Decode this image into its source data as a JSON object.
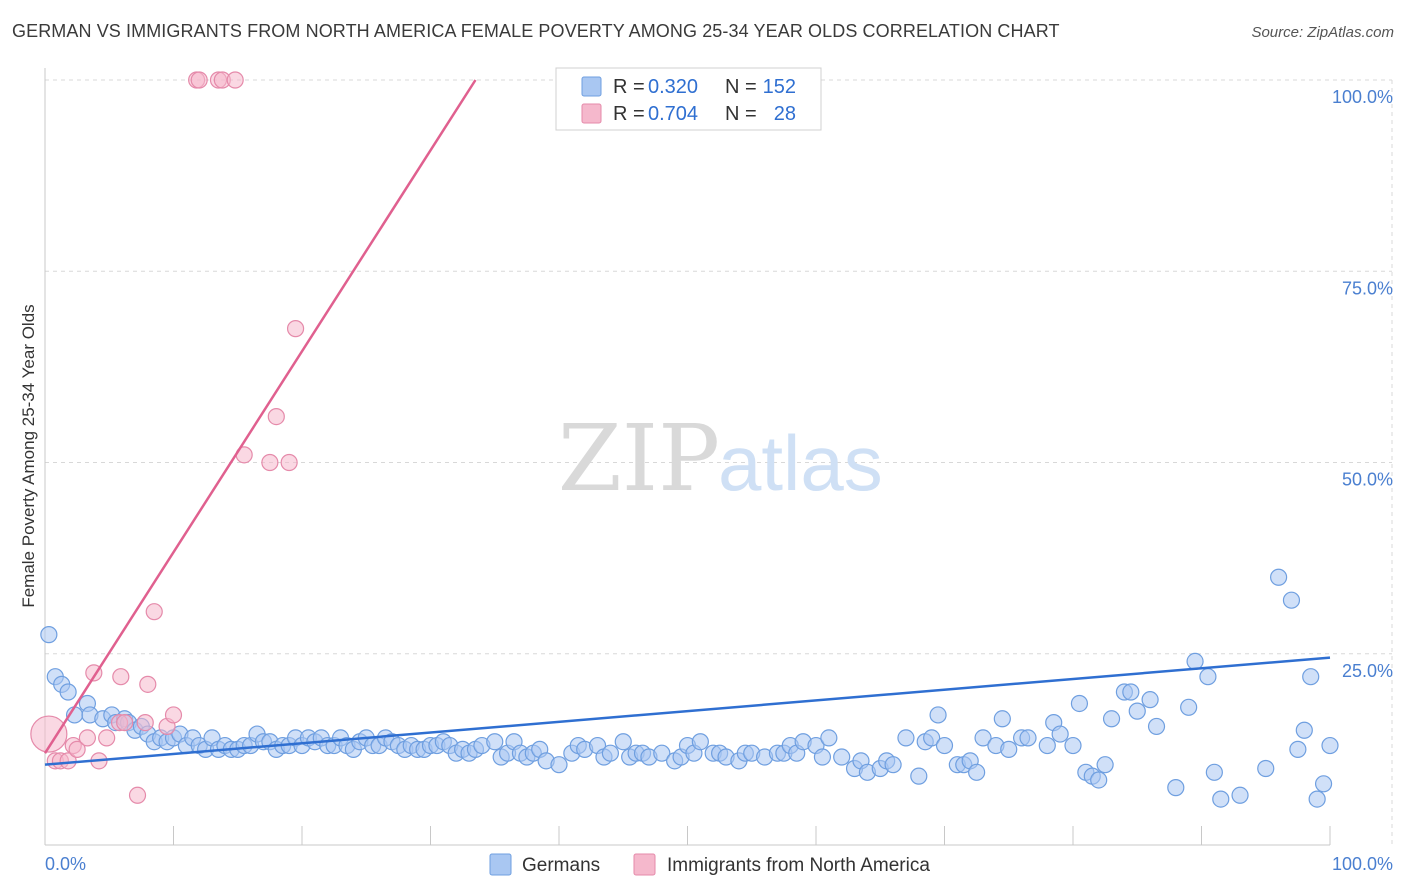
{
  "title": "GERMAN VS IMMIGRANTS FROM NORTH AMERICA FEMALE POVERTY AMONG 25-34 YEAR OLDS CORRELATION CHART",
  "source": "Source: ZipAtlas.com",
  "watermark": {
    "zip": "ZIP",
    "atlas": "atlas"
  },
  "colors": {
    "blue": "#4a86e8",
    "blue_fill": "#a9c7f2",
    "pink": "#e0608f",
    "pink_fill": "#f5b8cc",
    "grid": "#d8d8d8",
    "tick_text": "#4a7fd0"
  },
  "legend": {
    "items": [
      {
        "r_label": "R =",
        "r_value": "0.320",
        "n_label": "N =",
        "n_value": "152"
      },
      {
        "r_label": "R =",
        "r_value": "0.704",
        "n_label": "N =",
        "n_value": "28"
      }
    ]
  },
  "bottom_legend": [
    "Germans",
    "Immigrants from North America"
  ],
  "chart_data": {
    "type": "scatter",
    "title": "GERMAN VS IMMIGRANTS FROM NORTH AMERICA FEMALE POVERTY AMONG 25-34 YEAR OLDS CORRELATION CHART",
    "xlabel": "",
    "ylabel": "Female Poverty Among 25-34 Year Olds",
    "xlim": [
      0,
      100
    ],
    "ylim": [
      0,
      100
    ],
    "x_tick_labels": [
      "0.0%",
      "100.0%"
    ],
    "y_tick_labels": [
      "25.0%",
      "50.0%",
      "75.0%",
      "100.0%"
    ],
    "y_ticks": [
      25,
      50,
      75,
      100
    ],
    "grid": true,
    "legend_position": "top-center",
    "series": [
      {
        "name": "Germans",
        "color": "#4a86e8",
        "R": 0.32,
        "N": 152,
        "trendline": [
          [
            0,
            10.5
          ],
          [
            100,
            24.5
          ]
        ],
        "points": [
          [
            0.3,
            27.5
          ],
          [
            0.8,
            22
          ],
          [
            1.3,
            21
          ],
          [
            1.8,
            20
          ],
          [
            2.3,
            17
          ],
          [
            3.3,
            18.5
          ],
          [
            3.5,
            17
          ],
          [
            4.5,
            16.5
          ],
          [
            5.2,
            17
          ],
          [
            5.5,
            16
          ],
          [
            6.2,
            16.5
          ],
          [
            6.5,
            16
          ],
          [
            7,
            15
          ],
          [
            7.5,
            15.5
          ],
          [
            8,
            14.5
          ],
          [
            8.5,
            13.5
          ],
          [
            9,
            14
          ],
          [
            9.5,
            13.5
          ],
          [
            10,
            14
          ],
          [
            10.5,
            14.5
          ],
          [
            11,
            13
          ],
          [
            11.5,
            14
          ],
          [
            12,
            13
          ],
          [
            12.5,
            12.5
          ],
          [
            13,
            14
          ],
          [
            13.5,
            12.5
          ],
          [
            14,
            13
          ],
          [
            14.5,
            12.5
          ],
          [
            15,
            12.5
          ],
          [
            15.5,
            13
          ],
          [
            16,
            13
          ],
          [
            16.5,
            14.5
          ],
          [
            17,
            13.5
          ],
          [
            17.5,
            13.5
          ],
          [
            18,
            12.5
          ],
          [
            18.5,
            13
          ],
          [
            19,
            13
          ],
          [
            19.5,
            14
          ],
          [
            20,
            13
          ],
          [
            20.5,
            14
          ],
          [
            21,
            13.5
          ],
          [
            21.5,
            14
          ],
          [
            22,
            13
          ],
          [
            22.5,
            13
          ],
          [
            23,
            14
          ],
          [
            23.5,
            13
          ],
          [
            24,
            12.5
          ],
          [
            24.5,
            13.5
          ],
          [
            25,
            14
          ],
          [
            25.5,
            13
          ],
          [
            26,
            13
          ],
          [
            26.5,
            14
          ],
          [
            27,
            13.5
          ],
          [
            27.5,
            13
          ],
          [
            28,
            12.5
          ],
          [
            28.5,
            13
          ],
          [
            29,
            12.5
          ],
          [
            29.5,
            12.5
          ],
          [
            30,
            13
          ],
          [
            30.5,
            13
          ],
          [
            31,
            13.5
          ],
          [
            31.5,
            13
          ],
          [
            32,
            12
          ],
          [
            32.5,
            12.5
          ],
          [
            33,
            12
          ],
          [
            33.5,
            12.5
          ],
          [
            34,
            13
          ],
          [
            35,
            13.5
          ],
          [
            35.5,
            11.5
          ],
          [
            36,
            12
          ],
          [
            36.5,
            13.5
          ],
          [
            37,
            12
          ],
          [
            37.5,
            11.5
          ],
          [
            38,
            12
          ],
          [
            38.5,
            12.5
          ],
          [
            39,
            11
          ],
          [
            40,
            10.5
          ],
          [
            41,
            12
          ],
          [
            41.5,
            13
          ],
          [
            42,
            12.5
          ],
          [
            43,
            13
          ],
          [
            43.5,
            11.5
          ],
          [
            44,
            12
          ],
          [
            45,
            13.5
          ],
          [
            45.5,
            11.5
          ],
          [
            46,
            12
          ],
          [
            46.5,
            12
          ],
          [
            47,
            11.5
          ],
          [
            48,
            12
          ],
          [
            49,
            11
          ],
          [
            49.5,
            11.5
          ],
          [
            50,
            13
          ],
          [
            50.5,
            12
          ],
          [
            51,
            13.5
          ],
          [
            52,
            12
          ],
          [
            52.5,
            12
          ],
          [
            53,
            11.5
          ],
          [
            54,
            11
          ],
          [
            54.5,
            12
          ],
          [
            55,
            12
          ],
          [
            56,
            11.5
          ],
          [
            57,
            12
          ],
          [
            57.5,
            12
          ],
          [
            58,
            13
          ],
          [
            58.5,
            12
          ],
          [
            59,
            13.5
          ],
          [
            60,
            13
          ],
          [
            60.5,
            11.5
          ],
          [
            61,
            14
          ],
          [
            62,
            11.5
          ],
          [
            63,
            10
          ],
          [
            63.5,
            11
          ],
          [
            64,
            9.5
          ],
          [
            65,
            10
          ],
          [
            65.5,
            11
          ],
          [
            66,
            10.5
          ],
          [
            67,
            14
          ],
          [
            68,
            9
          ],
          [
            68.5,
            13.5
          ],
          [
            69,
            14
          ],
          [
            69.5,
            17
          ],
          [
            70,
            13
          ],
          [
            71,
            10.5
          ],
          [
            71.5,
            10.5
          ],
          [
            72,
            11
          ],
          [
            72.5,
            9.5
          ],
          [
            73,
            14
          ],
          [
            74,
            13
          ],
          [
            74.5,
            16.5
          ],
          [
            75,
            12.5
          ],
          [
            76,
            14
          ],
          [
            76.5,
            14
          ],
          [
            78,
            13
          ],
          [
            78.5,
            16
          ],
          [
            79,
            14.5
          ],
          [
            80,
            13
          ],
          [
            80.5,
            18.5
          ],
          [
            81,
            9.5
          ],
          [
            81.5,
            9
          ],
          [
            82,
            8.5
          ],
          [
            82.5,
            10.5
          ],
          [
            83,
            16.5
          ],
          [
            84,
            20
          ],
          [
            84.5,
            20
          ],
          [
            85,
            17.5
          ],
          [
            86,
            19
          ],
          [
            86.5,
            15.5
          ],
          [
            88,
            7.5
          ],
          [
            89,
            18
          ],
          [
            89.5,
            24
          ],
          [
            90.5,
            22
          ],
          [
            91,
            9.5
          ],
          [
            91.5,
            6
          ],
          [
            93,
            6.5
          ],
          [
            95,
            10
          ],
          [
            96,
            35
          ],
          [
            97,
            32
          ],
          [
            97.5,
            12.5
          ],
          [
            98,
            15
          ],
          [
            98.5,
            22
          ],
          [
            99,
            6
          ],
          [
            99.5,
            8
          ],
          [
            100,
            13
          ]
        ],
        "points_note": "approximate readings"
      },
      {
        "name": "Immigrants from North America",
        "color": "#e0608f",
        "R": 0.704,
        "N": 28,
        "trendline": [
          [
            0,
            12
          ],
          [
            33.5,
            100
          ]
        ],
        "points": [
          [
            0.3,
            14.5
          ],
          [
            0.8,
            11
          ],
          [
            1.2,
            11
          ],
          [
            1.8,
            11
          ],
          [
            2.2,
            13
          ],
          [
            2.5,
            12.5
          ],
          [
            3.3,
            14
          ],
          [
            3.8,
            22.5
          ],
          [
            4.2,
            11
          ],
          [
            4.8,
            14
          ],
          [
            5.8,
            16
          ],
          [
            5.9,
            22
          ],
          [
            6.2,
            16
          ],
          [
            7.2,
            6.5
          ],
          [
            7.8,
            16
          ],
          [
            8,
            21
          ],
          [
            8.5,
            30.5
          ],
          [
            9.5,
            15.5
          ],
          [
            10,
            17
          ],
          [
            11.8,
            100
          ],
          [
            12,
            100
          ],
          [
            13.5,
            100
          ],
          [
            13.8,
            100
          ],
          [
            14.8,
            100
          ],
          [
            15.5,
            51
          ],
          [
            17.5,
            50
          ],
          [
            18,
            56
          ],
          [
            19,
            50
          ],
          [
            19.5,
            67.5
          ]
        ]
      }
    ]
  }
}
